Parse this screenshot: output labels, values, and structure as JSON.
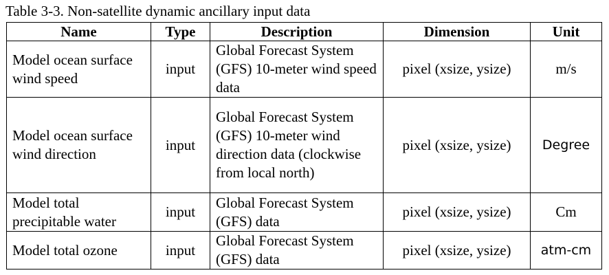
{
  "caption": "Table 3-3. Non-satellite dynamic ancillary input data",
  "columns": [
    "Name",
    "Type",
    "Description",
    "Dimension",
    "Unit"
  ],
  "rows": [
    {
      "name": "Model ocean surface wind speed",
      "type": "input",
      "description": "Global Forecast System (GFS) 10-meter wind speed data",
      "dimension": "pixel (xsize, ysize)",
      "unit": "m/s"
    },
    {
      "name": "Model ocean surface wind direction",
      "type": "input",
      "description": "Global Forecast System (GFS) 10-meter wind direction data (clockwise from local north)",
      "dimension": "pixel (xsize, ysize)",
      "unit": "Degree"
    },
    {
      "name": "Model total precipitable water",
      "type": "input",
      "description": "Global Forecast System (GFS) data",
      "dimension": "pixel (xsize, ysize)",
      "unit": "Cm"
    },
    {
      "name": "Model total ozone",
      "type": "input",
      "description": "Global Forecast System (GFS) data",
      "dimension": "pixel (xsize, ysize)",
      "unit": "atm-cm"
    }
  ]
}
